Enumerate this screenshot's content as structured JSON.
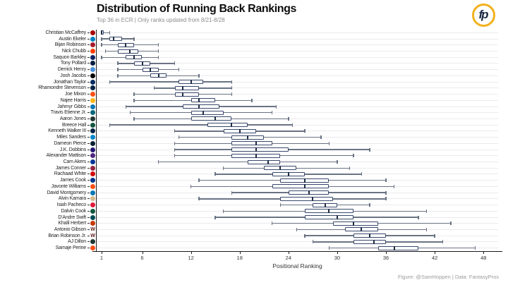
{
  "title": "Distribution of Running Back Rankings",
  "subtitle": "Top 36 in ECR | Only ranks updated from 8/21-8/28",
  "footer": "Figure: @SamHoppen | Data: FantasyPros",
  "logo": {
    "text": "fp",
    "ring_color": "#f2b11e",
    "text_color": "#1b2743"
  },
  "chart_data": {
    "type": "boxplot-horizontal",
    "title": "Distribution of Running Back Rankings",
    "subtitle": "Top 36 in ECR | Only ranks updated from 8/21-8/28",
    "xlabel": "Positional Ranking",
    "x_ticks": [
      1,
      6,
      12,
      18,
      24,
      30,
      36,
      42,
      48
    ],
    "x_domain": [
      0.4,
      49.8
    ],
    "grid": "horizontal-light",
    "colors": {
      "box_border": "#38486b",
      "box_fill": "#ffffff",
      "median": "#1f2c45",
      "whisker": "#6a7383",
      "grid": "#ebebee",
      "axis": "#1a1a1a"
    },
    "players": [
      {
        "name": "Christian McCaffrey",
        "team": "SF",
        "color": "#aa0000",
        "stats": {
          "min": 1,
          "q1": 1,
          "median": 1,
          "q3": 1.3,
          "max": 2
        }
      },
      {
        "name": "Austin Ekeler",
        "team": "LAC",
        "color": "#0080c6",
        "stats": {
          "min": 1,
          "q1": 2,
          "median": 2.5,
          "q3": 3.5,
          "max": 5
        }
      },
      {
        "name": "Bijan Robinson",
        "team": "ATL",
        "color": "#a71930",
        "stats": {
          "min": 1,
          "q1": 3,
          "median": 4,
          "q3": 5,
          "max": 8
        }
      },
      {
        "name": "Nick Chubb",
        "team": "CLE",
        "color": "#ff3c00",
        "stats": {
          "min": 1.5,
          "q1": 3,
          "median": 4.5,
          "q3": 5.5,
          "max": 8
        }
      },
      {
        "name": "Saquon Barkley",
        "team": "NYG",
        "color": "#0b2265",
        "stats": {
          "min": 1,
          "q1": 4,
          "median": 5,
          "q3": 6,
          "max": 8
        }
      },
      {
        "name": "Tony Pollard",
        "team": "DAL",
        "color": "#041e42",
        "stats": {
          "min": 3,
          "q1": 5,
          "median": 6,
          "q3": 7,
          "max": 10
        }
      },
      {
        "name": "Derrick Henry",
        "team": "TEN",
        "color": "#4b92db",
        "stats": {
          "min": 3,
          "q1": 6,
          "median": 7,
          "q3": 8,
          "max": 10.5
        }
      },
      {
        "name": "Josh Jacobs",
        "team": "LV",
        "color": "#000000",
        "stats": {
          "min": 3,
          "q1": 7,
          "median": 8,
          "q3": 9,
          "max": 13
        }
      },
      {
        "name": "Jonathan Taylor",
        "team": "IND",
        "color": "#002c5f",
        "stats": {
          "min": 2,
          "q1": 10.5,
          "median": 12,
          "q3": 13.5,
          "max": 17
        }
      },
      {
        "name": "Rhamondre Stevenson",
        "team": "NE",
        "color": "#002244",
        "stats": {
          "min": 7.5,
          "q1": 10,
          "median": 11,
          "q3": 13,
          "max": 17
        }
      },
      {
        "name": "Joe Mixon",
        "team": "CIN",
        "color": "#fb4f14",
        "stats": {
          "min": 5,
          "q1": 10,
          "median": 11,
          "q3": 13,
          "max": 17
        }
      },
      {
        "name": "Najee Harris",
        "team": "PIT",
        "color": "#ffb612",
        "stats": {
          "min": 5,
          "q1": 12,
          "median": 13,
          "q3": 15,
          "max": 19.5
        }
      },
      {
        "name": "Jahmyr Gibbs",
        "team": "DET",
        "color": "#0076b6",
        "stats": {
          "min": 4,
          "q1": 11,
          "median": 13,
          "q3": 15.5,
          "max": 22.5
        }
      },
      {
        "name": "Travis Etienne Jr.",
        "team": "JAX",
        "color": "#006778",
        "stats": {
          "min": 4.5,
          "q1": 12,
          "median": 13.5,
          "q3": 16,
          "max": 22
        }
      },
      {
        "name": "Aaron Jones",
        "team": "GB",
        "color": "#203731",
        "stats": {
          "min": 5,
          "q1": 12,
          "median": 15,
          "q3": 17,
          "max": 24
        }
      },
      {
        "name": "Breece Hall",
        "team": "NYJ",
        "color": "#125740",
        "stats": {
          "min": 2,
          "q1": 14,
          "median": 17,
          "q3": 19,
          "max": 24.5
        }
      },
      {
        "name": "Kenneth Walker III",
        "team": "SEA",
        "color": "#002244",
        "stats": {
          "min": 10,
          "q1": 16,
          "median": 18,
          "q3": 20,
          "max": 26
        }
      },
      {
        "name": "Miles Sanders",
        "team": "CAR",
        "color": "#0085ca",
        "stats": {
          "min": 10.5,
          "q1": 17,
          "median": 19,
          "q3": 21,
          "max": 28
        }
      },
      {
        "name": "Dameon Pierce",
        "team": "HOU",
        "color": "#03202f",
        "stats": {
          "min": 10,
          "q1": 17,
          "median": 20,
          "q3": 22,
          "max": 29
        }
      },
      {
        "name": "J.K. Dobbins",
        "team": "BAL",
        "color": "#241773",
        "stats": {
          "min": 10,
          "q1": 17,
          "median": 20,
          "q3": 24,
          "max": 34
        }
      },
      {
        "name": "Alexander Mattison",
        "team": "MIN",
        "color": "#4f2683",
        "stats": {
          "min": 10,
          "q1": 17,
          "median": 20,
          "q3": 23,
          "max": 32
        }
      },
      {
        "name": "Cam Akers",
        "team": "LAR",
        "color": "#003594",
        "stats": {
          "min": 8,
          "q1": 19,
          "median": 21.5,
          "q3": 23,
          "max": 30
        }
      },
      {
        "name": "James Conner",
        "team": "ARI",
        "color": "#97233f",
        "stats": {
          "min": 16,
          "q1": 21,
          "median": 23,
          "q3": 25,
          "max": 31.5
        }
      },
      {
        "name": "Rachaad White",
        "team": "TB",
        "color": "#d50a0a",
        "stats": {
          "min": 15,
          "q1": 22,
          "median": 24,
          "q3": 26,
          "max": 33
        }
      },
      {
        "name": "James Cook",
        "team": "BUF",
        "color": "#00338d",
        "stats": {
          "min": 13,
          "q1": 23,
          "median": 26,
          "q3": 29,
          "max": 36
        }
      },
      {
        "name": "Javonte Williams",
        "team": "DEN",
        "color": "#fb4f14",
        "stats": {
          "min": 12,
          "q1": 22,
          "median": 26,
          "q3": 29,
          "max": 37
        }
      },
      {
        "name": "David Montgomery",
        "team": "DET",
        "color": "#0076b6",
        "stats": {
          "min": 17,
          "q1": 24,
          "median": 26.5,
          "q3": 29,
          "max": 36
        }
      },
      {
        "name": "Alvin Kamara",
        "team": "NO",
        "color": "#d3bc8d",
        "stats": {
          "min": 13,
          "q1": 23,
          "median": 27,
          "q3": 29.5,
          "max": 36
        }
      },
      {
        "name": "Isiah Pacheco",
        "team": "KC",
        "color": "#e31837",
        "stats": {
          "min": 23,
          "q1": 27,
          "median": 28.5,
          "q3": 30,
          "max": 34
        }
      },
      {
        "name": "Dalvin Cook",
        "team": "NYJ",
        "color": "#125740",
        "stats": {
          "min": 16,
          "q1": 26,
          "median": 29,
          "q3": 32,
          "max": 41
        }
      },
      {
        "name": "D'Andre Swift",
        "team": "PHI",
        "color": "#004c54",
        "stats": {
          "min": 15,
          "q1": 26,
          "median": 30,
          "q3": 32,
          "max": 40
        }
      },
      {
        "name": "Khalil Herbert",
        "team": "CHI",
        "color": "#c83803",
        "stats": {
          "min": 22,
          "q1": 29.5,
          "median": 32,
          "q3": 35,
          "max": 44
        }
      },
      {
        "name": "Antonio Gibson",
        "team": "WAS",
        "color": "#5a1414",
        "letter": "W",
        "stats": {
          "min": 25,
          "q1": 31,
          "median": 33,
          "q3": 35,
          "max": 41
        }
      },
      {
        "name": "Brian Robinson Jr.",
        "team": "WAS",
        "color": "#5a1414",
        "letter": "W",
        "stats": {
          "min": 26,
          "q1": 32,
          "median": 34,
          "q3": 36,
          "max": 42
        }
      },
      {
        "name": "AJ Dillon",
        "team": "GB",
        "color": "#203731",
        "stats": {
          "min": 27,
          "q1": 32,
          "median": 34.5,
          "q3": 36,
          "max": 43
        }
      },
      {
        "name": "Samaje Perine",
        "team": "DEN",
        "color": "#fb4f14",
        "stats": {
          "min": 29,
          "q1": 35,
          "median": 37,
          "q3": 40,
          "max": 47
        }
      }
    ]
  }
}
